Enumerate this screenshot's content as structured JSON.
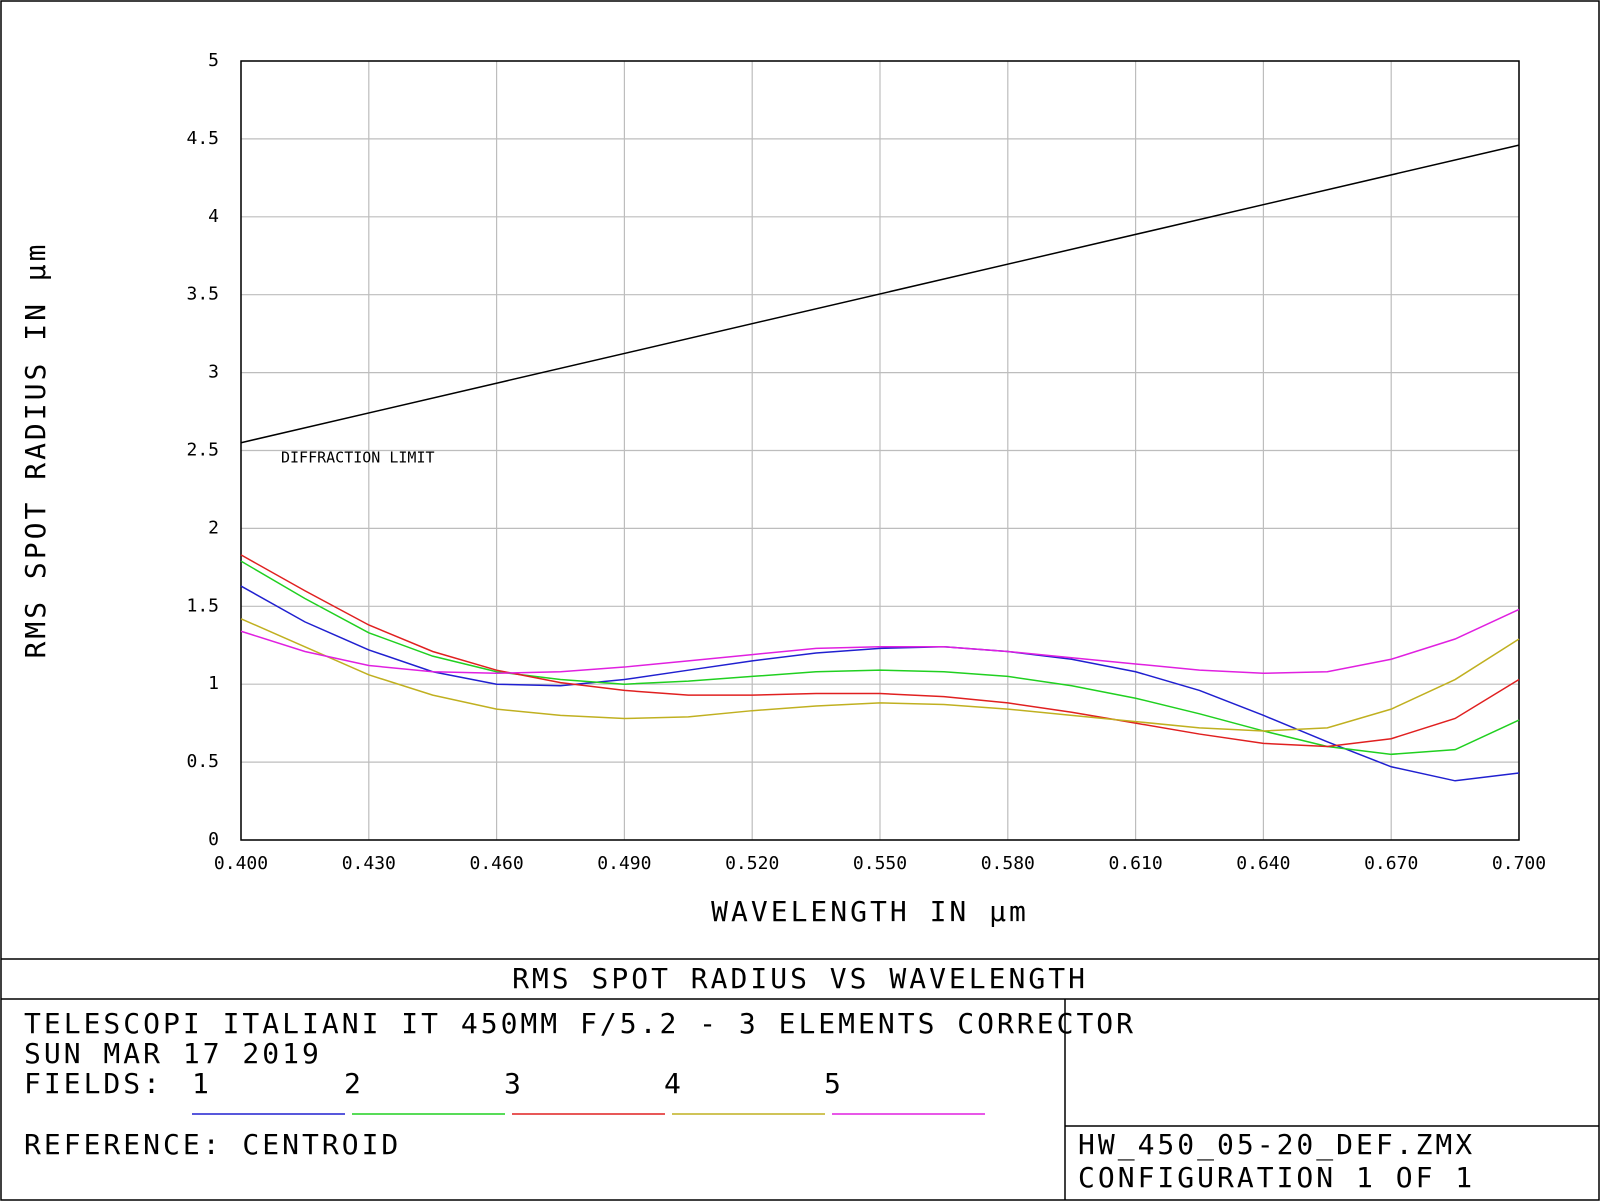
{
  "chart_data": {
    "type": "line",
    "title": "RMS SPOT RADIUS VS WAVELENGTH",
    "x_label": "WAVELENGTH IN µm",
    "y_label": "RMS SPOT RADIUS IN µm",
    "x": [
      0.4,
      0.415,
      0.43,
      0.445,
      0.46,
      0.475,
      0.49,
      0.505,
      0.52,
      0.535,
      0.55,
      0.565,
      0.58,
      0.595,
      0.61,
      0.625,
      0.64,
      0.655,
      0.67,
      0.685,
      0.7
    ],
    "series": [
      {
        "name": "1",
        "color": "#2020d0",
        "values": [
          1.63,
          1.4,
          1.22,
          1.08,
          1.0,
          0.99,
          1.03,
          1.09,
          1.15,
          1.2,
          1.23,
          1.24,
          1.21,
          1.16,
          1.08,
          0.96,
          0.8,
          0.63,
          0.47,
          0.38,
          0.43
        ]
      },
      {
        "name": "2",
        "color": "#20d020",
        "values": [
          1.79,
          1.55,
          1.33,
          1.18,
          1.08,
          1.03,
          1.0,
          1.02,
          1.05,
          1.08,
          1.09,
          1.08,
          1.05,
          0.99,
          0.91,
          0.81,
          0.7,
          0.6,
          0.55,
          0.58,
          0.77
        ]
      },
      {
        "name": "3",
        "color": "#e02020",
        "values": [
          1.83,
          1.6,
          1.38,
          1.21,
          1.09,
          1.01,
          0.96,
          0.93,
          0.93,
          0.94,
          0.94,
          0.92,
          0.88,
          0.82,
          0.75,
          0.68,
          0.62,
          0.6,
          0.65,
          0.78,
          1.03
        ]
      },
      {
        "name": "4",
        "color": "#c0b020",
        "values": [
          1.42,
          1.24,
          1.06,
          0.93,
          0.84,
          0.8,
          0.78,
          0.79,
          0.83,
          0.86,
          0.88,
          0.87,
          0.84,
          0.8,
          0.76,
          0.72,
          0.7,
          0.72,
          0.84,
          1.03,
          1.29
        ]
      },
      {
        "name": "5",
        "color": "#e020e0",
        "values": [
          1.34,
          1.21,
          1.12,
          1.08,
          1.07,
          1.08,
          1.11,
          1.15,
          1.19,
          1.23,
          1.24,
          1.24,
          1.21,
          1.17,
          1.13,
          1.09,
          1.07,
          1.08,
          1.16,
          1.29,
          1.48
        ]
      }
    ],
    "diffraction_limit": {
      "label": "DIFFRACTION LIMIT",
      "color": "#000000",
      "x": [
        0.4,
        0.7
      ],
      "values": [
        2.55,
        4.46
      ]
    },
    "xlim": [
      0.4,
      0.7
    ],
    "ylim": [
      0,
      5
    ],
    "xticks": [
      {
        "value": 0.4,
        "label": "0.400"
      },
      {
        "value": 0.43,
        "label": "0.430"
      },
      {
        "value": 0.46,
        "label": "0.460"
      },
      {
        "value": 0.49,
        "label": "0.490"
      },
      {
        "value": 0.52,
        "label": "0.520"
      },
      {
        "value": 0.55,
        "label": "0.550"
      },
      {
        "value": 0.58,
        "label": "0.580"
      },
      {
        "value": 0.61,
        "label": "0.610"
      },
      {
        "value": 0.64,
        "label": "0.640"
      },
      {
        "value": 0.67,
        "label": "0.670"
      },
      {
        "value": 0.7,
        "label": "0.700"
      }
    ],
    "yticks": [
      0,
      0.5,
      1,
      1.5,
      2,
      2.5,
      3,
      3.5,
      4,
      4.5,
      5
    ],
    "grid": true,
    "legend_title": "FIELDS:",
    "info": {
      "lines": [
        "TELESCOPI ITALIANI IT 450MM F/5.2  -  3 ELEMENTS CORRECTOR",
        "SUN MAR 17 2019"
      ],
      "reference": "REFERENCE: CENTROID",
      "file": "HW_450_05-20_DEF.ZMX",
      "configuration": "CONFIGURATION 1 OF 1"
    }
  }
}
